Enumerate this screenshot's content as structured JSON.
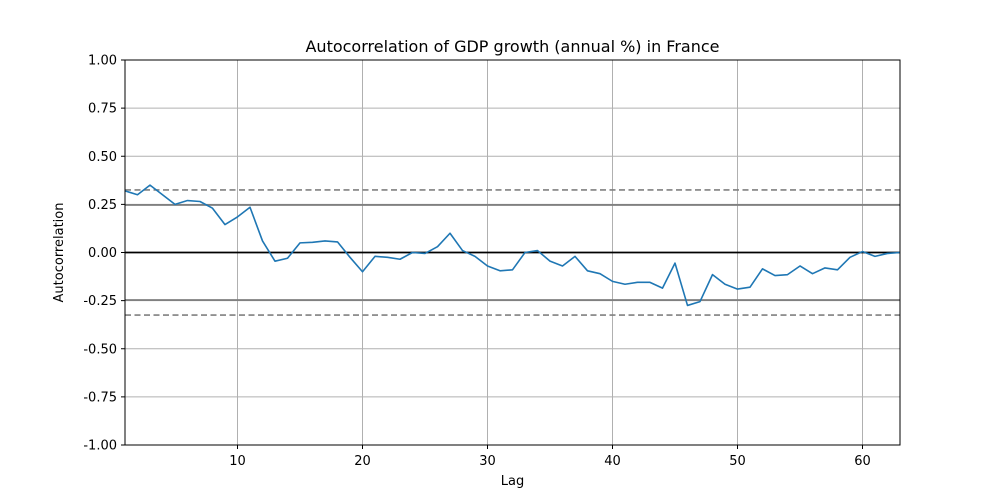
{
  "chart_data": {
    "type": "line",
    "title": "Autocorrelation of GDP growth (annual %) in France",
    "xlabel": "Lag",
    "ylabel": "Autocorrelation",
    "xlim": [
      1,
      63
    ],
    "ylim": [
      -1.0,
      1.0
    ],
    "grid": true,
    "x_ticks": [
      10,
      20,
      30,
      40,
      50,
      60
    ],
    "y_ticks": [
      "-1.00",
      "-0.75",
      "-0.50",
      "-0.25",
      "0.00",
      "0.25",
      "0.50",
      "0.75",
      "1.00"
    ],
    "reference_lines": [
      {
        "y": 0.0,
        "style": "solid",
        "color": "#000000"
      },
      {
        "y": 0.247,
        "style": "solid",
        "color": "#808080"
      },
      {
        "y": -0.247,
        "style": "solid",
        "color": "#808080"
      },
      {
        "y": 0.325,
        "style": "dashed",
        "color": "#808080"
      },
      {
        "y": -0.325,
        "style": "dashed",
        "color": "#808080"
      }
    ],
    "series": [
      {
        "color": "#1f77b4",
        "x": [
          1,
          2,
          3,
          4,
          5,
          6,
          7,
          8,
          9,
          10,
          11,
          12,
          13,
          14,
          15,
          16,
          17,
          18,
          19,
          20,
          21,
          22,
          23,
          24,
          25,
          26,
          27,
          28,
          29,
          30,
          31,
          32,
          33,
          34,
          35,
          36,
          37,
          38,
          39,
          40,
          41,
          42,
          43,
          44,
          45,
          46,
          47,
          48,
          49,
          50,
          51,
          52,
          53,
          54,
          55,
          56,
          57,
          58,
          59,
          60,
          61,
          62,
          63
        ],
        "values": [
          0.32,
          0.3,
          0.35,
          0.3,
          0.25,
          0.27,
          0.265,
          0.23,
          0.145,
          0.185,
          0.235,
          0.06,
          -0.045,
          -0.03,
          0.05,
          0.053,
          0.06,
          0.055,
          -0.025,
          -0.1,
          -0.02,
          -0.025,
          -0.035,
          0.0,
          -0.005,
          0.03,
          0.1,
          0.01,
          -0.02,
          -0.07,
          -0.095,
          -0.09,
          0.0,
          0.01,
          -0.045,
          -0.07,
          -0.02,
          -0.095,
          -0.11,
          -0.15,
          -0.165,
          -0.155,
          -0.155,
          -0.185,
          -0.055,
          -0.275,
          -0.255,
          -0.115,
          -0.165,
          -0.19,
          -0.18,
          -0.085,
          -0.12,
          -0.115,
          -0.07,
          -0.11,
          -0.08,
          -0.09,
          -0.025,
          0.005,
          -0.02,
          -0.005,
          0.0
        ]
      }
    ]
  }
}
